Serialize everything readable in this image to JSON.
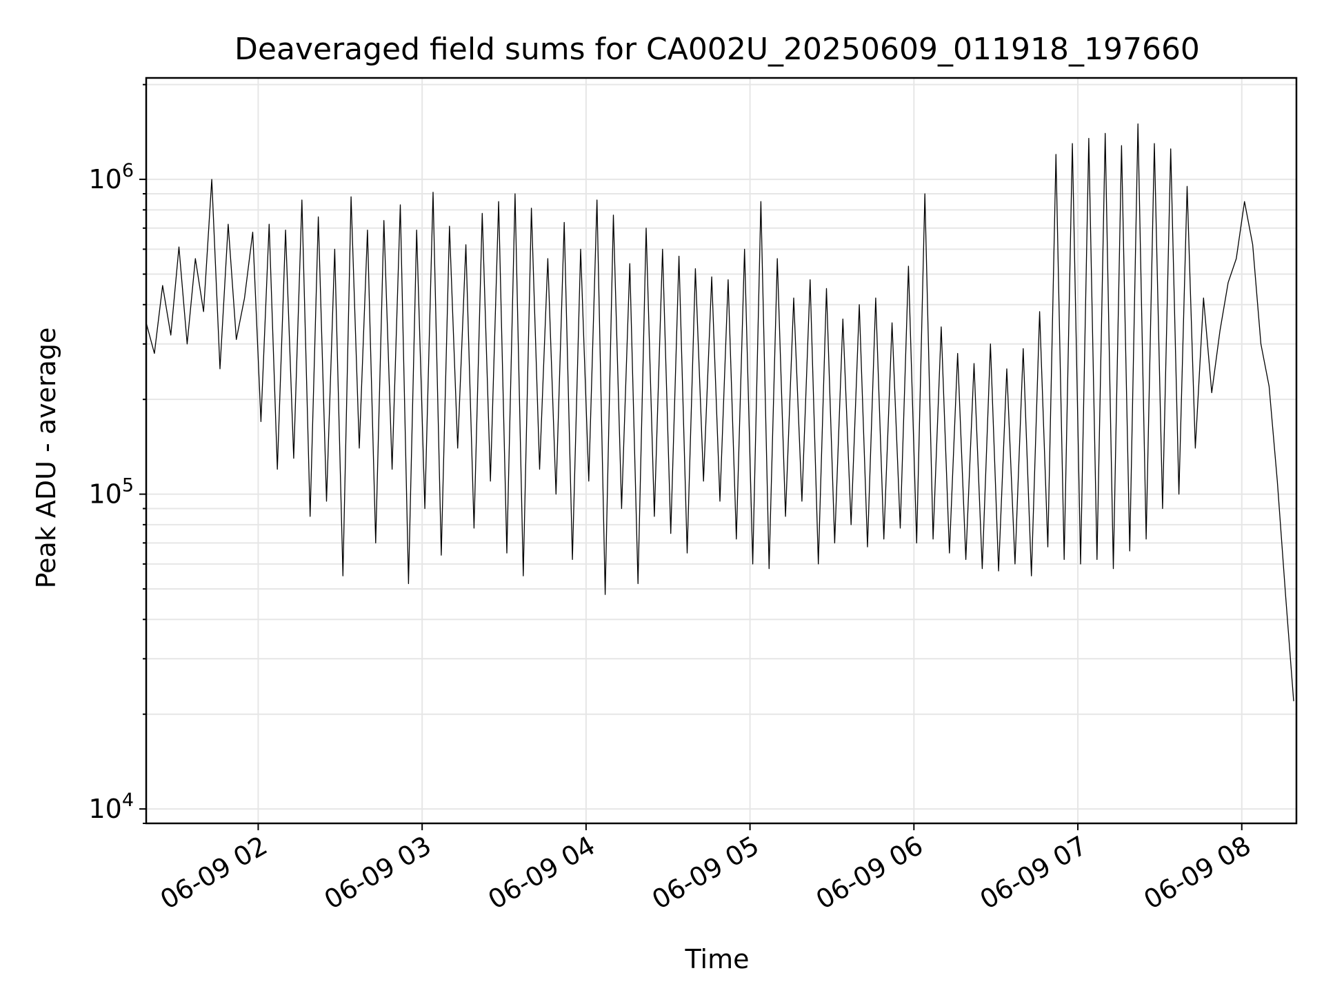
{
  "chart_data": {
    "type": "line",
    "title": "Deaveraged field sums for CA002U_20250609_011918_197660",
    "xlabel": "Time",
    "ylabel": "Peak ADU - average",
    "y_scale": "log",
    "ylim": [
      9000,
      2100000
    ],
    "xlim": [
      "2025-06-09 01:19",
      "2025-06-09 08:20"
    ],
    "grid": true,
    "legend": "none",
    "x_ticks": [
      "06-09 02",
      "06-09 03",
      "06-09 04",
      "06-09 05",
      "06-09 06",
      "06-09 07",
      "06-09 08"
    ],
    "x_tick_times": [
      "2025-06-09 02:00",
      "2025-06-09 03:00",
      "2025-06-09 04:00",
      "2025-06-09 05:00",
      "2025-06-09 06:00",
      "2025-06-09 07:00",
      "2025-06-09 08:00"
    ],
    "y_ticks": [
      {
        "value": 10000,
        "base": "10",
        "exp": "4"
      },
      {
        "value": 100000,
        "base": "10",
        "exp": "5"
      },
      {
        "value": 1000000,
        "base": "10",
        "exp": "6"
      }
    ],
    "line_color": "#000000",
    "series": [
      {
        "x": [
          "2025-06-09 01:19",
          "2025-06-09 01:22",
          "2025-06-09 01:25",
          "2025-06-09 01:28",
          "2025-06-09 01:31",
          "2025-06-09 01:34",
          "2025-06-09 01:37",
          "2025-06-09 01:40",
          "2025-06-09 01:43",
          "2025-06-09 01:46",
          "2025-06-09 01:49",
          "2025-06-09 01:52",
          "2025-06-09 01:55",
          "2025-06-09 01:58",
          "2025-06-09 02:01",
          "2025-06-09 02:04",
          "2025-06-09 02:07",
          "2025-06-09 02:10",
          "2025-06-09 02:13",
          "2025-06-09 02:16",
          "2025-06-09 02:19",
          "2025-06-09 02:22",
          "2025-06-09 02:25",
          "2025-06-09 02:28",
          "2025-06-09 02:31",
          "2025-06-09 02:34",
          "2025-06-09 02:37",
          "2025-06-09 02:40",
          "2025-06-09 02:43",
          "2025-06-09 02:46",
          "2025-06-09 02:49",
          "2025-06-09 02:52",
          "2025-06-09 02:55",
          "2025-06-09 02:58",
          "2025-06-09 03:01",
          "2025-06-09 03:04",
          "2025-06-09 03:07",
          "2025-06-09 03:10",
          "2025-06-09 03:13",
          "2025-06-09 03:16",
          "2025-06-09 03:19",
          "2025-06-09 03:22",
          "2025-06-09 03:25",
          "2025-06-09 03:28",
          "2025-06-09 03:31",
          "2025-06-09 03:34",
          "2025-06-09 03:37",
          "2025-06-09 03:40",
          "2025-06-09 03:43",
          "2025-06-09 03:46",
          "2025-06-09 03:49",
          "2025-06-09 03:52",
          "2025-06-09 03:55",
          "2025-06-09 03:58",
          "2025-06-09 04:01",
          "2025-06-09 04:04",
          "2025-06-09 04:07",
          "2025-06-09 04:10",
          "2025-06-09 04:13",
          "2025-06-09 04:16",
          "2025-06-09 04:19",
          "2025-06-09 04:22",
          "2025-06-09 04:25",
          "2025-06-09 04:28",
          "2025-06-09 04:31",
          "2025-06-09 04:34",
          "2025-06-09 04:37",
          "2025-06-09 04:40",
          "2025-06-09 04:43",
          "2025-06-09 04:46",
          "2025-06-09 04:49",
          "2025-06-09 04:52",
          "2025-06-09 04:55",
          "2025-06-09 04:58",
          "2025-06-09 05:01",
          "2025-06-09 05:04",
          "2025-06-09 05:07",
          "2025-06-09 05:10",
          "2025-06-09 05:13",
          "2025-06-09 05:16",
          "2025-06-09 05:19",
          "2025-06-09 05:22",
          "2025-06-09 05:25",
          "2025-06-09 05:28",
          "2025-06-09 05:31",
          "2025-06-09 05:34",
          "2025-06-09 05:37",
          "2025-06-09 05:40",
          "2025-06-09 05:43",
          "2025-06-09 05:46",
          "2025-06-09 05:49",
          "2025-06-09 05:52",
          "2025-06-09 05:55",
          "2025-06-09 05:58",
          "2025-06-09 06:01",
          "2025-06-09 06:04",
          "2025-06-09 06:07",
          "2025-06-09 06:10",
          "2025-06-09 06:13",
          "2025-06-09 06:16",
          "2025-06-09 06:19",
          "2025-06-09 06:22",
          "2025-06-09 06:25",
          "2025-06-09 06:28",
          "2025-06-09 06:31",
          "2025-06-09 06:34",
          "2025-06-09 06:37",
          "2025-06-09 06:40",
          "2025-06-09 06:43",
          "2025-06-09 06:46",
          "2025-06-09 06:49",
          "2025-06-09 06:52",
          "2025-06-09 06:55",
          "2025-06-09 06:58",
          "2025-06-09 07:01",
          "2025-06-09 07:04",
          "2025-06-09 07:07",
          "2025-06-09 07:10",
          "2025-06-09 07:13",
          "2025-06-09 07:16",
          "2025-06-09 07:19",
          "2025-06-09 07:22",
          "2025-06-09 07:25",
          "2025-06-09 07:28",
          "2025-06-09 07:31",
          "2025-06-09 07:34",
          "2025-06-09 07:37",
          "2025-06-09 07:40",
          "2025-06-09 07:43",
          "2025-06-09 07:46",
          "2025-06-09 07:49",
          "2025-06-09 07:52",
          "2025-06-09 07:55",
          "2025-06-09 07:58",
          "2025-06-09 08:01",
          "2025-06-09 08:04",
          "2025-06-09 08:07",
          "2025-06-09 08:10",
          "2025-06-09 08:13",
          "2025-06-09 08:16",
          "2025-06-09 08:19"
        ],
        "y": [
          350000,
          280000,
          460000,
          320000,
          610000,
          300000,
          560000,
          380000,
          1000000,
          250000,
          720000,
          310000,
          420000,
          680000,
          170000,
          720000,
          120000,
          690000,
          130000,
          860000,
          85000,
          760000,
          95000,
          600000,
          55000,
          880000,
          140000,
          690000,
          70000,
          740000,
          120000,
          830000,
          52000,
          690000,
          90000,
          910000,
          64000,
          710000,
          140000,
          620000,
          78000,
          780000,
          110000,
          850000,
          65000,
          900000,
          55000,
          810000,
          120000,
          560000,
          100000,
          730000,
          62000,
          600000,
          110000,
          860000,
          48000,
          770000,
          90000,
          540000,
          52000,
          700000,
          85000,
          600000,
          75000,
          570000,
          65000,
          520000,
          110000,
          490000,
          95000,
          480000,
          72000,
          600000,
          60000,
          850000,
          58000,
          560000,
          85000,
          420000,
          95000,
          480000,
          60000,
          450000,
          70000,
          360000,
          80000,
          400000,
          68000,
          420000,
          72000,
          350000,
          78000,
          530000,
          70000,
          900000,
          72000,
          340000,
          65000,
          280000,
          62000,
          260000,
          58000,
          300000,
          57000,
          250000,
          60000,
          290000,
          55000,
          380000,
          68000,
          1200000,
          62000,
          1300000,
          60000,
          1350000,
          62000,
          1400000,
          58000,
          1280000,
          66000,
          1500000,
          72000,
          1300000,
          90000,
          1250000,
          100000,
          950000,
          140000,
          420000,
          210000,
          330000,
          470000,
          560000,
          850000,
          620000,
          300000,
          220000,
          110000,
          48000,
          22000
        ]
      }
    ]
  }
}
